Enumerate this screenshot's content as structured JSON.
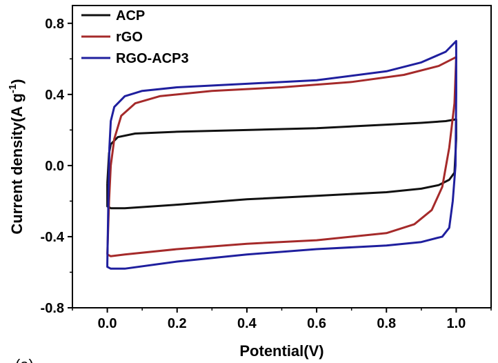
{
  "chart_data": {
    "type": "line",
    "title": "",
    "xlabel": "Potential(V)",
    "ylabel_main": "Current density(A g",
    "ylabel_sup": "-1",
    "ylabel_end": ")",
    "xlim": [
      -0.1,
      1.1
    ],
    "ylim": [
      -0.8,
      0.9
    ],
    "x_ticks": [
      0.0,
      0.2,
      0.4,
      0.6,
      0.8,
      1.0
    ],
    "x_tick_labels": [
      "0.0",
      "0.2",
      "0.4",
      "0.6",
      "0.8",
      "1.0"
    ],
    "y_ticks": [
      -0.8,
      -0.4,
      0.0,
      0.4,
      0.8
    ],
    "y_tick_labels": [
      "-0.8",
      "-0.4",
      "0.0",
      "0.4",
      "0.8"
    ],
    "grid": false,
    "legend_position": "top-left",
    "panel_label": "(a)",
    "series": [
      {
        "name": "ACP",
        "color": "#111111",
        "points": [
          [
            0.0,
            -0.1
          ],
          [
            0.005,
            0.07
          ],
          [
            0.01,
            0.12
          ],
          [
            0.03,
            0.16
          ],
          [
            0.08,
            0.18
          ],
          [
            0.2,
            0.19
          ],
          [
            0.4,
            0.2
          ],
          [
            0.6,
            0.21
          ],
          [
            0.8,
            0.23
          ],
          [
            0.9,
            0.24
          ],
          [
            0.97,
            0.25
          ],
          [
            1.0,
            0.26
          ],
          [
            1.0,
            0.15
          ],
          [
            0.995,
            -0.04
          ],
          [
            0.98,
            -0.08
          ],
          [
            0.95,
            -0.11
          ],
          [
            0.9,
            -0.13
          ],
          [
            0.8,
            -0.15
          ],
          [
            0.6,
            -0.17
          ],
          [
            0.4,
            -0.19
          ],
          [
            0.2,
            -0.22
          ],
          [
            0.05,
            -0.24
          ],
          [
            0.01,
            -0.24
          ],
          [
            0.0,
            -0.23
          ],
          [
            0.0,
            -0.1
          ]
        ]
      },
      {
        "name": "rGO",
        "color": "#a52a2a",
        "points": [
          [
            0.0,
            -0.5
          ],
          [
            0.005,
            -0.2
          ],
          [
            0.01,
            0.0
          ],
          [
            0.02,
            0.15
          ],
          [
            0.04,
            0.28
          ],
          [
            0.08,
            0.35
          ],
          [
            0.15,
            0.39
          ],
          [
            0.3,
            0.42
          ],
          [
            0.5,
            0.44
          ],
          [
            0.7,
            0.47
          ],
          [
            0.85,
            0.51
          ],
          [
            0.95,
            0.56
          ],
          [
            1.0,
            0.61
          ],
          [
            0.995,
            0.35
          ],
          [
            0.98,
            0.1
          ],
          [
            0.96,
            -0.12
          ],
          [
            0.93,
            -0.25
          ],
          [
            0.88,
            -0.33
          ],
          [
            0.8,
            -0.38
          ],
          [
            0.6,
            -0.42
          ],
          [
            0.4,
            -0.44
          ],
          [
            0.2,
            -0.47
          ],
          [
            0.05,
            -0.5
          ],
          [
            0.01,
            -0.51
          ],
          [
            0.0,
            -0.5
          ]
        ]
      },
      {
        "name": "RGO-ACP3",
        "color": "#1f1f9e",
        "points": [
          [
            0.0,
            -0.55
          ],
          [
            0.003,
            -0.2
          ],
          [
            0.006,
            0.1
          ],
          [
            0.01,
            0.25
          ],
          [
            0.02,
            0.33
          ],
          [
            0.05,
            0.39
          ],
          [
            0.1,
            0.42
          ],
          [
            0.2,
            0.44
          ],
          [
            0.4,
            0.46
          ],
          [
            0.6,
            0.48
          ],
          [
            0.8,
            0.53
          ],
          [
            0.9,
            0.58
          ],
          [
            0.97,
            0.64
          ],
          [
            1.0,
            0.7
          ],
          [
            1.0,
            0.4
          ],
          [
            0.998,
            0.0
          ],
          [
            0.99,
            -0.2
          ],
          [
            0.98,
            -0.35
          ],
          [
            0.96,
            -0.4
          ],
          [
            0.9,
            -0.43
          ],
          [
            0.8,
            -0.45
          ],
          [
            0.6,
            -0.47
          ],
          [
            0.4,
            -0.5
          ],
          [
            0.2,
            -0.54
          ],
          [
            0.05,
            -0.58
          ],
          [
            0.01,
            -0.58
          ],
          [
            0.0,
            -0.57
          ],
          [
            0.0,
            -0.55
          ]
        ]
      }
    ]
  }
}
